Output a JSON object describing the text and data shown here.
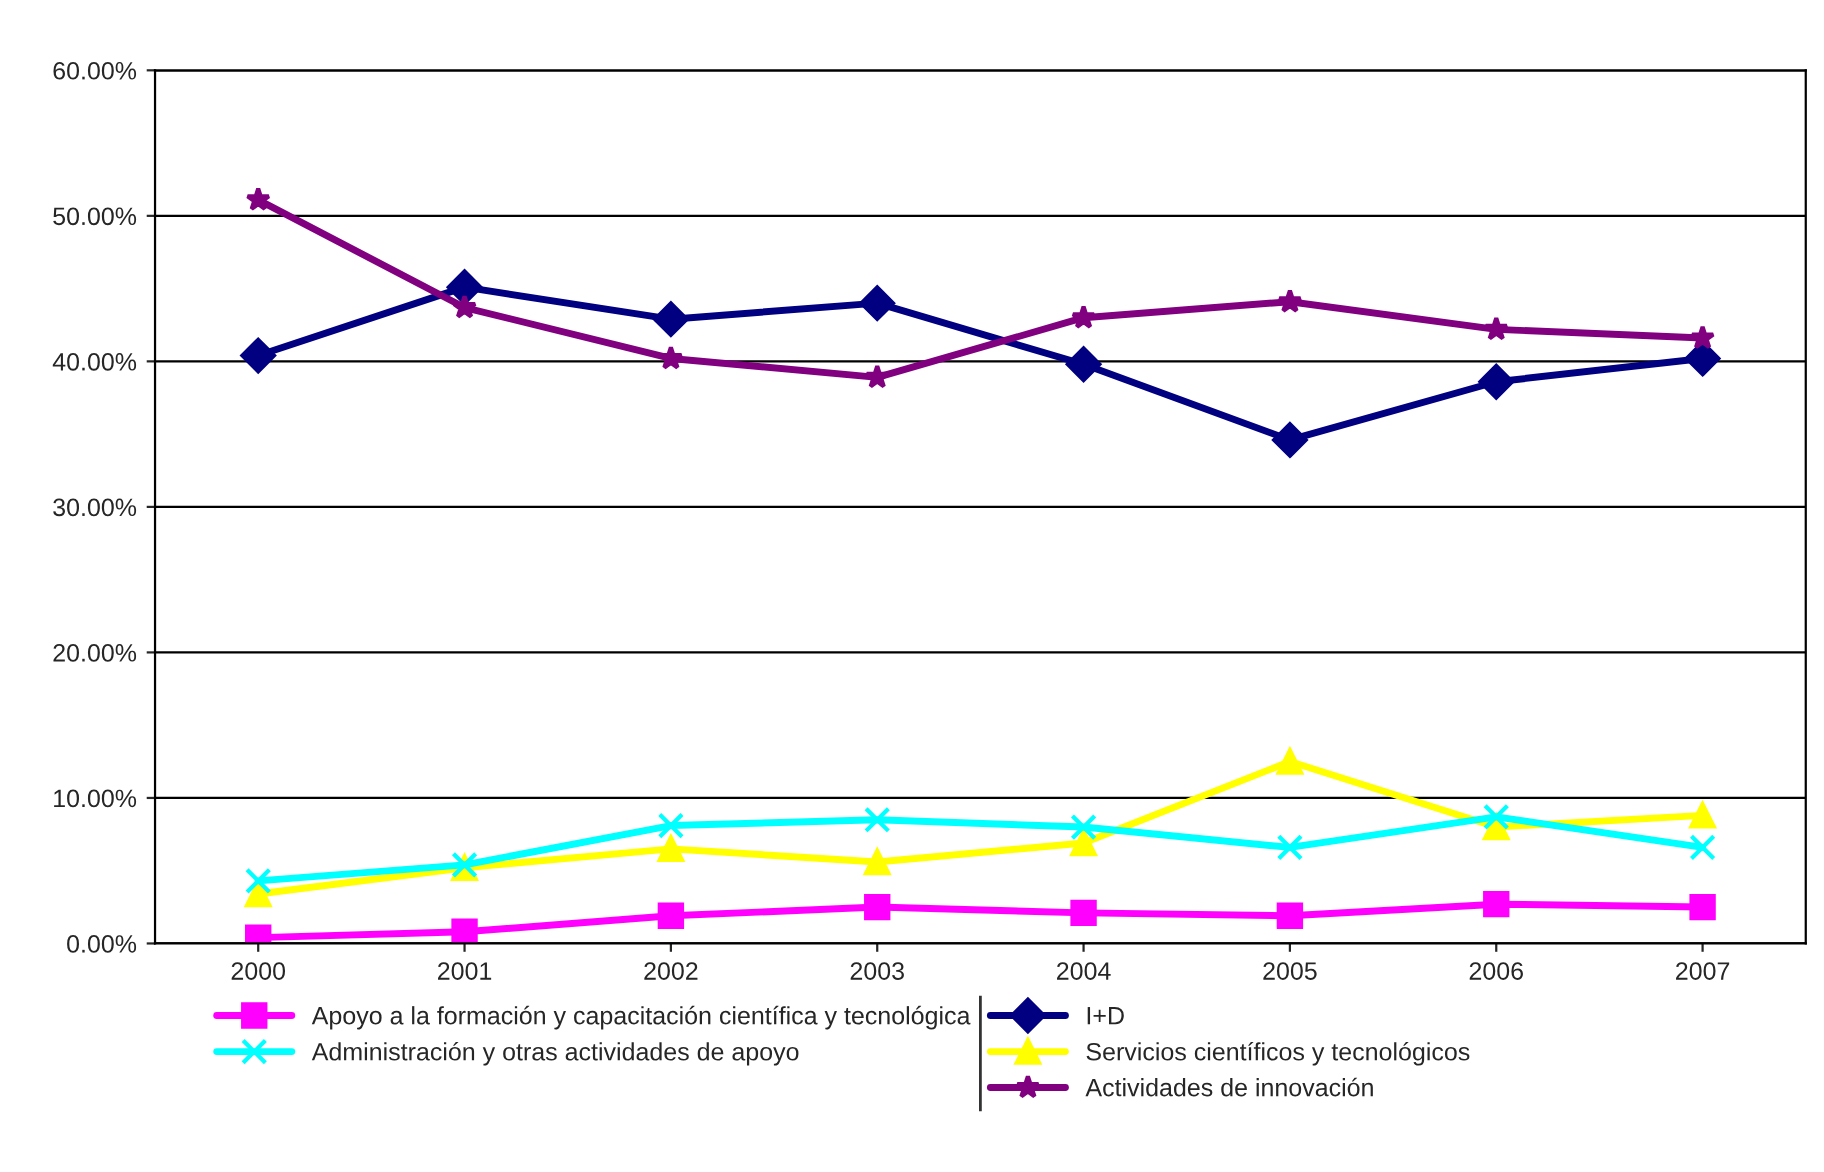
{
  "chart_data": {
    "type": "line",
    "categories": [
      "2000",
      "2001",
      "2002",
      "2003",
      "2004",
      "2005",
      "2006",
      "2007"
    ],
    "series": [
      {
        "name": "I+D",
        "color": "#000080",
        "marker": "diamond",
        "values": [
          40.4,
          45.1,
          42.9,
          44.0,
          39.8,
          34.6,
          38.6,
          40.2
        ]
      },
      {
        "name": "Apoyo a la formación y capacitación científica y tecnológica",
        "color": "#ff00ff",
        "marker": "square",
        "values": [
          0.4,
          0.8,
          1.9,
          2.5,
          2.1,
          1.9,
          2.7,
          2.5
        ]
      },
      {
        "name": "Servicios científicos y tecnológicos",
        "color": "#ffff00",
        "marker": "triangle",
        "values": [
          3.4,
          5.2,
          6.5,
          5.6,
          6.9,
          12.5,
          8.0,
          8.8
        ]
      },
      {
        "name": "Administración y otras actividades de apoyo",
        "color": "#00ffff",
        "marker": "cross",
        "values": [
          4.3,
          5.4,
          8.1,
          8.5,
          8.0,
          6.6,
          8.7,
          6.6
        ]
      },
      {
        "name": "Actividades de innovación",
        "color": "#800080",
        "marker": "star",
        "values": [
          51.1,
          43.7,
          40.2,
          38.9,
          43.0,
          44.1,
          42.2,
          41.6
        ]
      }
    ],
    "ylim": [
      0,
      60
    ],
    "yticks": [
      {
        "value": 0,
        "label": "0.00%"
      },
      {
        "value": 10,
        "label": "10.00%"
      },
      {
        "value": 20,
        "label": "20.00%"
      },
      {
        "value": 30,
        "label": "30.00%"
      },
      {
        "value": 40,
        "label": "40.00%"
      },
      {
        "value": 50,
        "label": "50.00%"
      },
      {
        "value": 60,
        "label": "60.00%"
      }
    ],
    "grid": "y",
    "legend": "bottom",
    "line_style": "solid"
  }
}
